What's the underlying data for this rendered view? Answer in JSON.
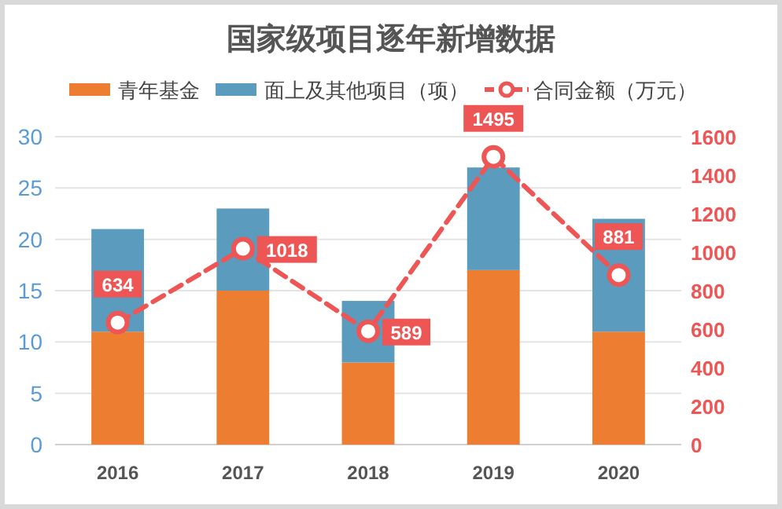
{
  "chart_data": {
    "type": "bar",
    "stacked": true,
    "title": "国家级项目逐年新增数据",
    "categories": [
      "2016",
      "2017",
      "2018",
      "2019",
      "2020"
    ],
    "series": [
      {
        "name": "青年基金",
        "color": "#ed7d31",
        "values": [
          11,
          15,
          8,
          17,
          11
        ]
      },
      {
        "name": "面上及其他项目（项）",
        "color": "#5b9bbd",
        "values": [
          10,
          8,
          6,
          10,
          11
        ]
      },
      {
        "name": "合同金额（万元）",
        "type": "line",
        "axis": "y2",
        "color": "#ee5555",
        "marker": "circle",
        "line_style": "dashed",
        "values": [
          634,
          1018,
          589,
          1495,
          881
        ],
        "value_labels": [
          "634",
          "1018",
          "589",
          "1495",
          "881"
        ]
      }
    ],
    "ylim": [
      0,
      30
    ],
    "yticks": [
      0,
      5,
      10,
      15,
      20,
      25,
      30
    ],
    "y2lim": [
      0,
      1600
    ],
    "y2ticks": [
      0,
      200,
      400,
      600,
      800,
      1000,
      1200,
      1400,
      1600
    ],
    "grid": "y",
    "legend": "top"
  }
}
